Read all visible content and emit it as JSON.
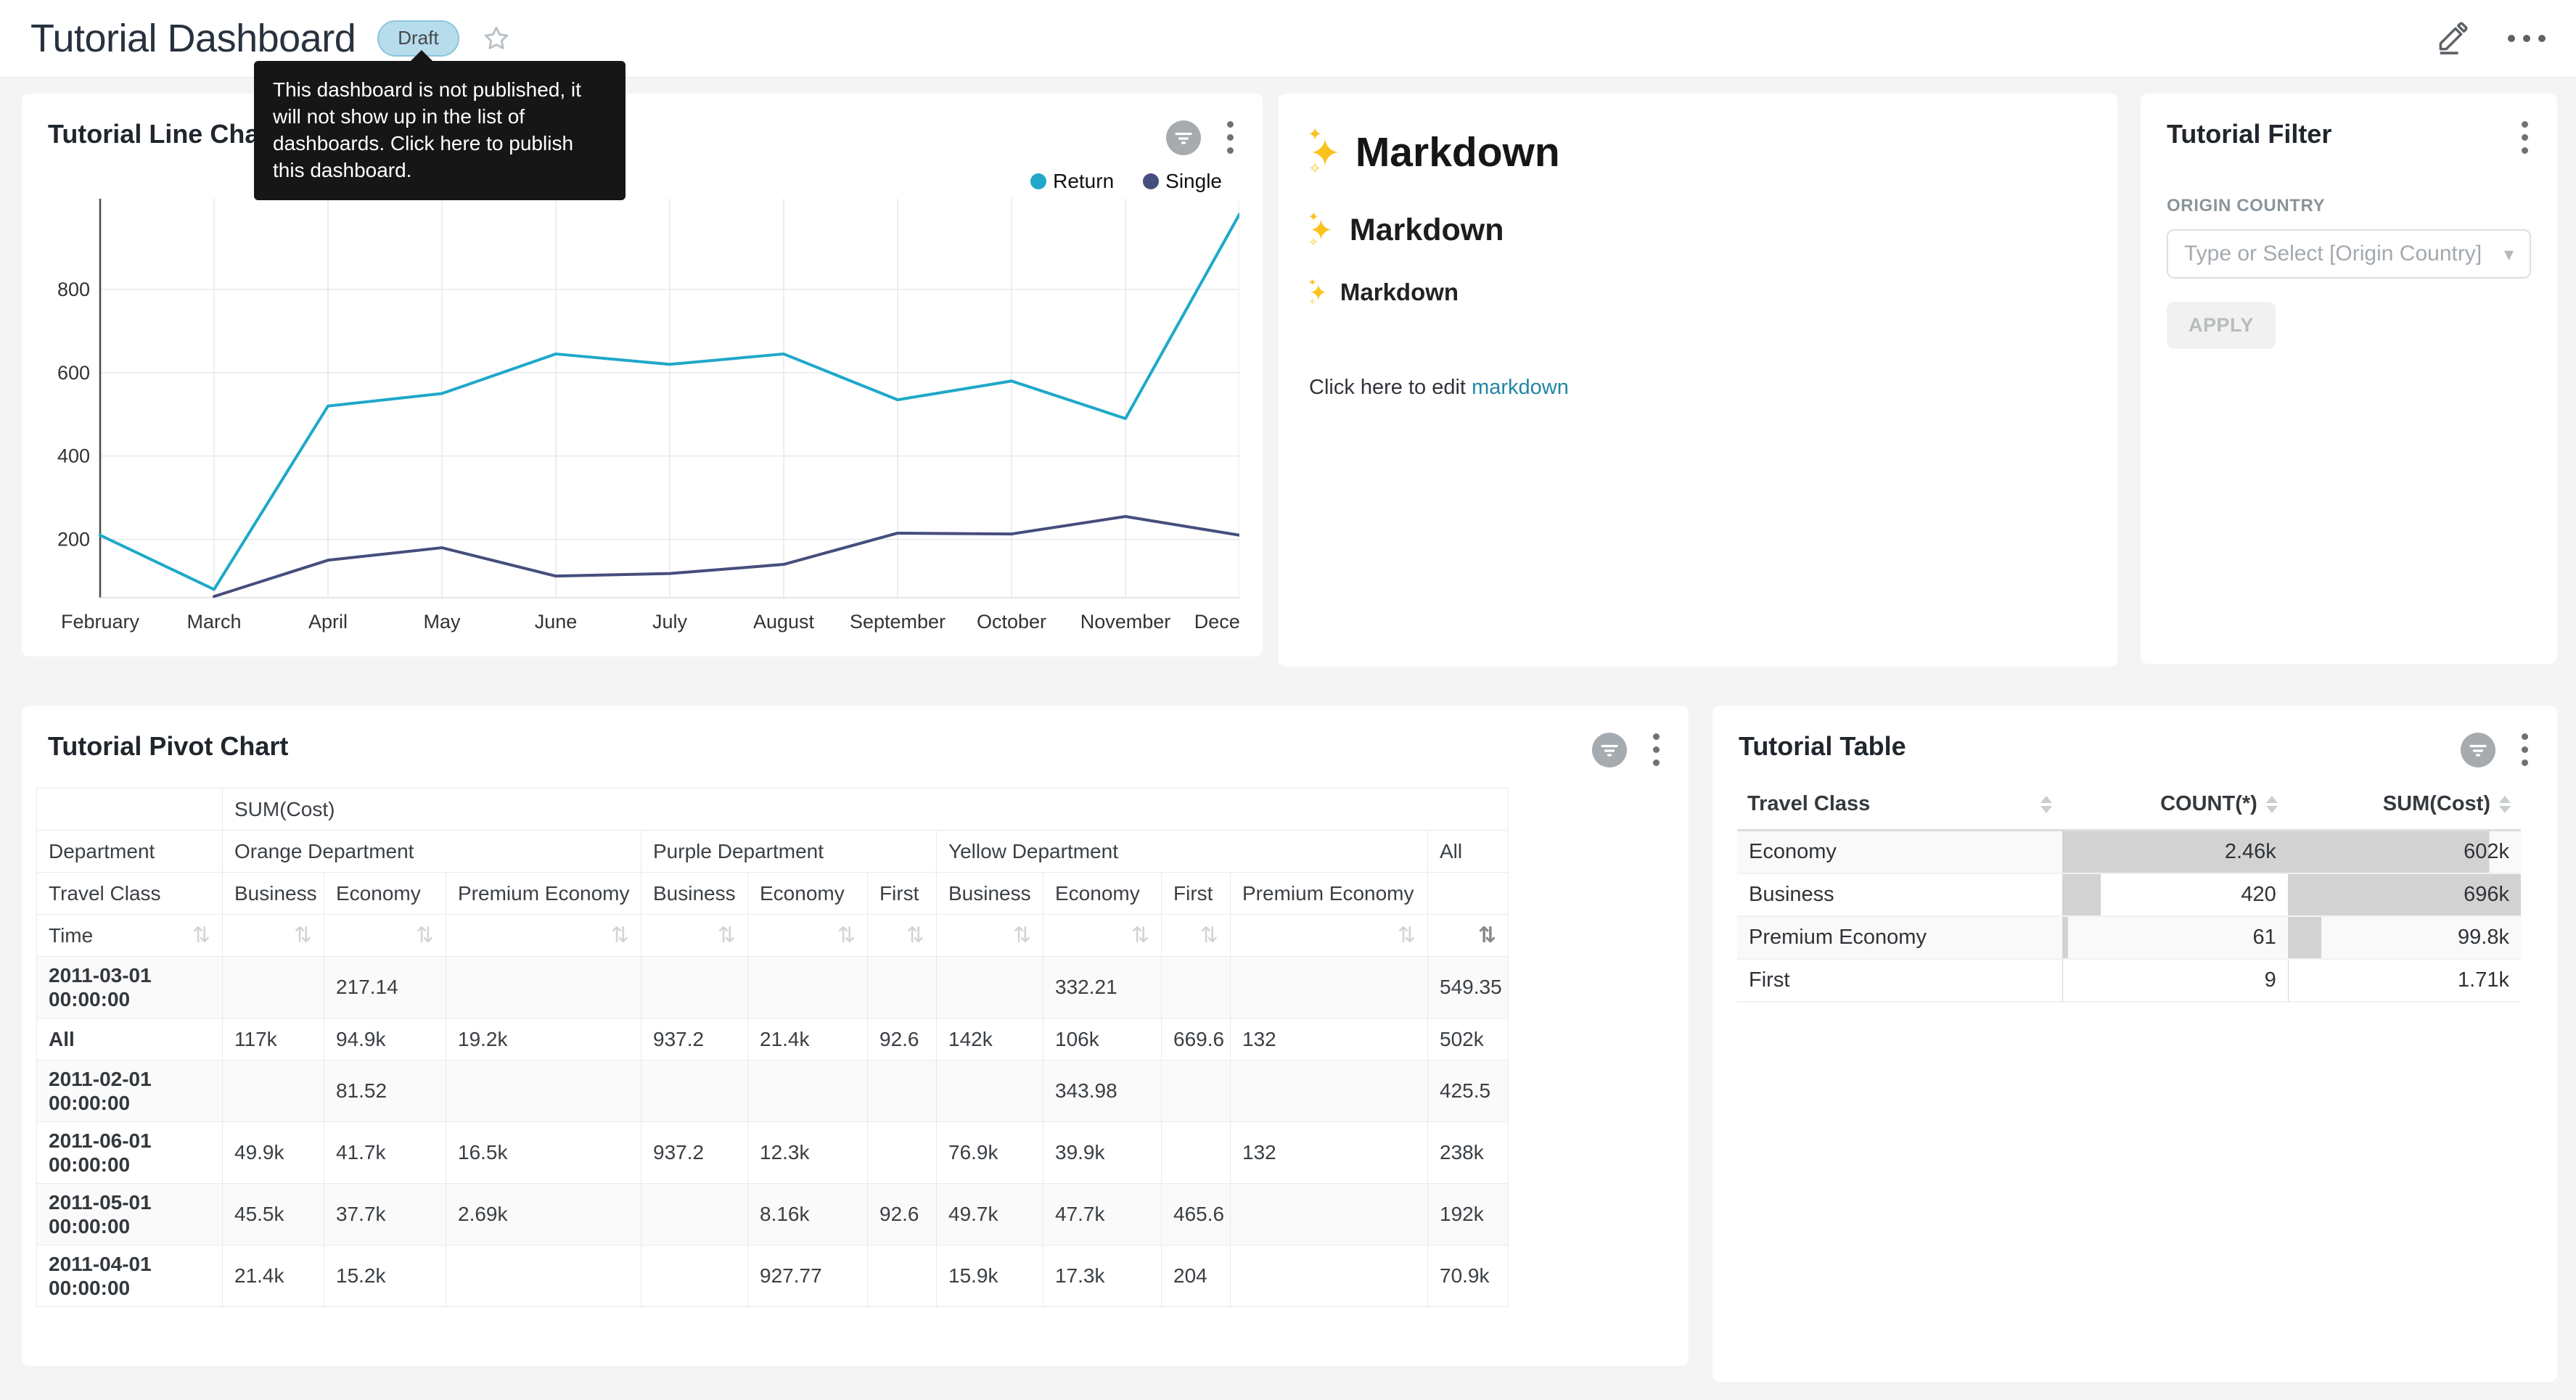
{
  "header": {
    "title": "Tutorial Dashboard",
    "status_badge": "Draft",
    "tooltip": "This dashboard is not published, it will not show up in the list of dashboards. Click here to publish this dashboard."
  },
  "colors": {
    "series_return": "#1FA8C9",
    "series_single": "#454E7C",
    "draft_badge_bg": "#b7dcec",
    "link": "#2286a5",
    "table_bar": "#d2d2d2"
  },
  "icons": {
    "edit": "pencil-icon",
    "more": "ellipsis-icon",
    "favorite": "star-icon",
    "card_filter_status": "filter-circle-icon",
    "card_menu": "kebab-icon",
    "sort": "sort-arrows-icon"
  },
  "line_chart_panel": {
    "title": "Tutorial Line Chart"
  },
  "chart_data": {
    "type": "line",
    "title": "Tutorial Line Chart",
    "x": [
      "February",
      "March",
      "April",
      "May",
      "June",
      "July",
      "August",
      "September",
      "October",
      "November",
      "December"
    ],
    "series": [
      {
        "name": "Return",
        "color": "#1FA8C9",
        "values": [
          210,
          80,
          520,
          550,
          645,
          620,
          645,
          535,
          580,
          490,
          980
        ]
      },
      {
        "name": "Single",
        "color": "#454E7C",
        "values": [
          null,
          63,
          150,
          180,
          112,
          118,
          140,
          215,
          213,
          255,
          210
        ]
      }
    ],
    "ylim": [
      60,
      1000
    ],
    "yticks": [
      200,
      400,
      600,
      800
    ],
    "grid": true,
    "legend_position": "top-right"
  },
  "markdown_panel": {
    "headings": [
      {
        "icon": "sparkles-emoji",
        "text": "Markdown",
        "level": 1
      },
      {
        "icon": "sparkles-emoji",
        "text": "Markdown",
        "level": 2
      },
      {
        "icon": "sparkles-emoji",
        "text": "Markdown",
        "level": 3
      }
    ],
    "paragraph_prefix": "Click here to edit",
    "link_text": "markdown"
  },
  "filter_panel": {
    "title": "Tutorial Filter",
    "field_label": "ORIGIN COUNTRY",
    "select_placeholder": "Type or Select [Origin Country]",
    "apply_label": "APPLY"
  },
  "pivot_panel": {
    "title": "Tutorial Pivot Chart",
    "metric_header": "SUM(Cost)",
    "dept_row_label": "Department",
    "class_row_label": "Travel Class",
    "time_row_label": "Time",
    "all_label": "All",
    "departments": [
      {
        "name": "Orange Department",
        "classes": [
          "Business",
          "Economy",
          "Premium Economy"
        ]
      },
      {
        "name": "Purple Department",
        "classes": [
          "Business",
          "Economy",
          "First"
        ]
      },
      {
        "name": "Yellow Department",
        "classes": [
          "Business",
          "Economy",
          "First",
          "Premium Economy"
        ]
      }
    ],
    "rows": [
      {
        "label": "2011-03-01 00:00:00",
        "values": [
          "",
          "217.14",
          "",
          "",
          "",
          "",
          "",
          "332.21",
          "",
          "",
          "549.35"
        ]
      },
      {
        "label": "All",
        "values": [
          "117k",
          "94.9k",
          "19.2k",
          "937.2",
          "21.4k",
          "92.6",
          "142k",
          "106k",
          "669.6",
          "132",
          "502k"
        ]
      },
      {
        "label": "2011-02-01 00:00:00",
        "values": [
          "",
          "81.52",
          "",
          "",
          "",
          "",
          "",
          "343.98",
          "",
          "",
          "425.5"
        ]
      },
      {
        "label": "2011-06-01 00:00:00",
        "values": [
          "49.9k",
          "41.7k",
          "16.5k",
          "937.2",
          "12.3k",
          "",
          "76.9k",
          "39.9k",
          "",
          "132",
          "238k"
        ]
      },
      {
        "label": "2011-05-01 00:00:00",
        "values": [
          "45.5k",
          "37.7k",
          "2.69k",
          "",
          "8.16k",
          "92.6",
          "49.7k",
          "47.7k",
          "465.6",
          "",
          "192k"
        ]
      },
      {
        "label": "2011-04-01 00:00:00",
        "values": [
          "21.4k",
          "15.2k",
          "",
          "",
          "927.77",
          "",
          "15.9k",
          "17.3k",
          "204",
          "",
          "70.9k"
        ]
      }
    ]
  },
  "table_panel": {
    "title": "Tutorial Table",
    "columns": [
      "Travel Class",
      "COUNT(*)",
      "SUM(Cost)"
    ],
    "rows": [
      {
        "travel_class": "Economy",
        "count": "2.46k",
        "count_pct": 100,
        "sum": "602k",
        "sum_pct": 86.5
      },
      {
        "travel_class": "Business",
        "count": "420",
        "count_pct": 17.1,
        "sum": "696k",
        "sum_pct": 100
      },
      {
        "travel_class": "Premium Economy",
        "count": "61",
        "count_pct": 2.5,
        "sum": "99.8k",
        "sum_pct": 14.3
      },
      {
        "travel_class": "First",
        "count": "9",
        "count_pct": 0.4,
        "sum": "1.71k",
        "sum_pct": 0.25
      }
    ]
  }
}
